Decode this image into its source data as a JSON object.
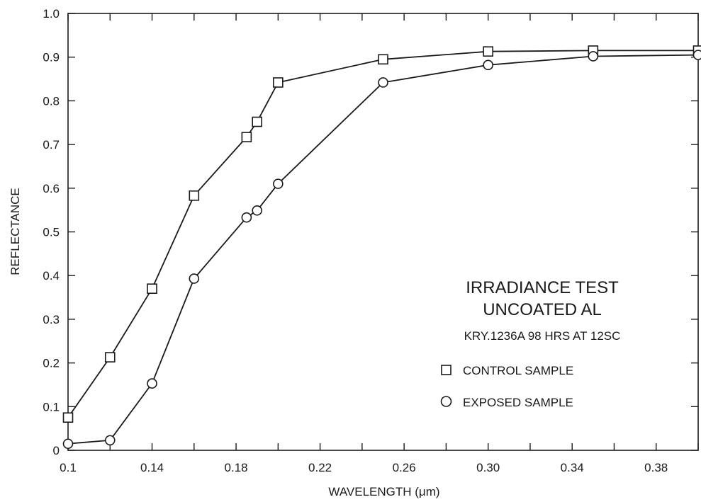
{
  "chart_data": {
    "type": "line",
    "xlabel": "WAVELENGTH (μm)",
    "ylabel": "REFLECTANCE",
    "xlim": [
      0.1,
      0.4
    ],
    "ylim": [
      0,
      1.0
    ],
    "grid": false,
    "x_ticks": [
      0.1,
      0.14,
      0.18,
      0.22,
      0.26,
      0.3,
      0.34,
      0.38
    ],
    "x_tick_labels": [
      "0.1",
      "0.14",
      "0.18",
      "0.22",
      "0.26",
      "0.30",
      "0.34",
      "0.38"
    ],
    "y_ticks": [
      0,
      0.1,
      0.2,
      0.3,
      0.4,
      0.5,
      0.6,
      0.7,
      0.8,
      0.9,
      1.0
    ],
    "y_tick_labels": [
      "0",
      "0.1",
      "0.2",
      "0.3",
      "0.4",
      "0.5",
      "0.6",
      "0.7",
      "0.8",
      "0.9",
      "1.0"
    ],
    "x": [
      0.1,
      0.12,
      0.14,
      0.16,
      0.185,
      0.19,
      0.2,
      0.25,
      0.3,
      0.35,
      0.4
    ],
    "legend_placement": "center-right",
    "annotations": {
      "title_line1": "IRRADIANCE TEST",
      "title_line2": "UNCOATED AL",
      "subtitle": "KRY.1236A 98 HRS AT 12SC"
    },
    "series": [
      {
        "name": "CONTROL SAMPLE",
        "marker": "square",
        "values": [
          0.075,
          0.213,
          0.37,
          0.583,
          0.717,
          0.752,
          0.842,
          0.895,
          0.913,
          0.915,
          0.915
        ]
      },
      {
        "name": "EXPOSED SAMPLE",
        "marker": "circle",
        "values": [
          0.015,
          0.023,
          0.153,
          0.393,
          0.533,
          0.549,
          0.61,
          0.842,
          0.882,
          0.902,
          0.905
        ]
      }
    ]
  },
  "colors": {
    "ink": "#1a1a1a",
    "background": "#ffffff"
  }
}
